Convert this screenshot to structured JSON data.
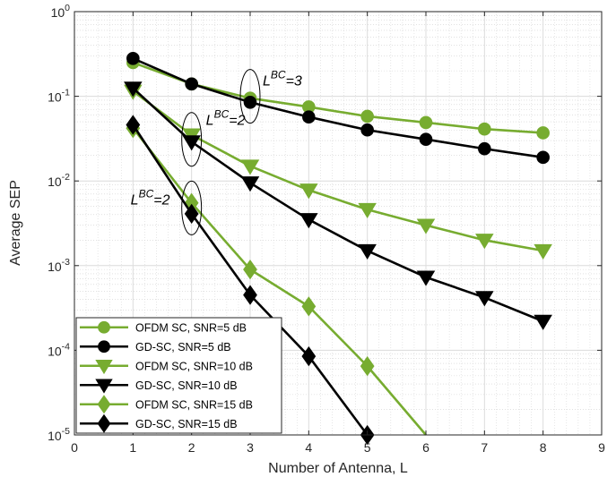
{
  "chart_data": {
    "type": "line",
    "title": "",
    "xlabel": "Number of Antenna, L",
    "ylabel": "Average SEP",
    "xlim": [
      0,
      9
    ],
    "ylim": [
      1e-05,
      1
    ],
    "yscale": "log",
    "grid": true,
    "minor_grid": true,
    "x_ticks": [
      0,
      1,
      2,
      3,
      4,
      5,
      6,
      7,
      8,
      9
    ],
    "y_ticks": [
      {
        "value": 1,
        "base": "10",
        "exp": "0"
      },
      {
        "value": 0.1,
        "base": "10",
        "exp": "-1"
      },
      {
        "value": 0.01,
        "base": "10",
        "exp": "-2"
      },
      {
        "value": 0.001,
        "base": "10",
        "exp": "-3"
      },
      {
        "value": 0.0001,
        "base": "10",
        "exp": "-4"
      },
      {
        "value": 1e-05,
        "base": "10",
        "exp": "-5"
      }
    ],
    "legend_position": "bottom-left",
    "colors": {
      "green": "#77ac30",
      "black": "#000000"
    },
    "series": [
      {
        "name": "OFDM SC, SNR=5 dB",
        "color": "#77ac30",
        "marker": "circle",
        "x": [
          1,
          2,
          3,
          4,
          5,
          6,
          7,
          8
        ],
        "y": [
          0.25,
          0.14,
          0.095,
          0.075,
          0.058,
          0.049,
          0.041,
          0.037
        ]
      },
      {
        "name": "GD-SC, SNR=5 dB",
        "color": "#000000",
        "marker": "circle",
        "x": [
          1,
          2,
          3,
          4,
          5,
          6,
          7,
          8
        ],
        "y": [
          0.28,
          0.14,
          0.085,
          0.057,
          0.04,
          0.031,
          0.024,
          0.019
        ]
      },
      {
        "name": "OFDM SC, SNR=10 dB",
        "color": "#77ac30",
        "marker": "triangle-down",
        "x": [
          1,
          2,
          3,
          4,
          5,
          6,
          7,
          8
        ],
        "y": [
          0.115,
          0.035,
          0.015,
          0.0078,
          0.0046,
          0.003,
          0.002,
          0.0015
        ]
      },
      {
        "name": "GD-SC, SNR=10 dB",
        "color": "#000000",
        "marker": "triangle-down",
        "x": [
          1,
          2,
          3,
          4,
          5,
          6,
          7,
          8
        ],
        "y": [
          0.125,
          0.029,
          0.0095,
          0.0035,
          0.0015,
          0.00073,
          0.00042,
          0.00022
        ]
      },
      {
        "name": "OFDM SC, SNR=15 dB",
        "color": "#77ac30",
        "marker": "diamond",
        "x": [
          1,
          2,
          3,
          4,
          5,
          6
        ],
        "y": [
          0.042,
          0.0055,
          0.0009,
          0.00033,
          6.5e-05,
          1e-05
        ]
      },
      {
        "name": "GD-SC, SNR=15 dB",
        "color": "#000000",
        "marker": "diamond",
        "x": [
          1,
          2,
          3,
          4,
          5
        ],
        "y": [
          0.046,
          0.0041,
          0.00045,
          8.5e-05,
          1e-05
        ]
      }
    ],
    "annotations": [
      {
        "base": "L",
        "sup": "BC",
        "tail": "=3",
        "x": 3,
        "y": 0.1
      },
      {
        "base": "L",
        "sup": "BC",
        "tail": "=2",
        "x": 2,
        "y": 0.031
      },
      {
        "base": "L",
        "sup": "BC",
        "tail": "=2",
        "x": 2,
        "y": 0.0048
      }
    ]
  }
}
